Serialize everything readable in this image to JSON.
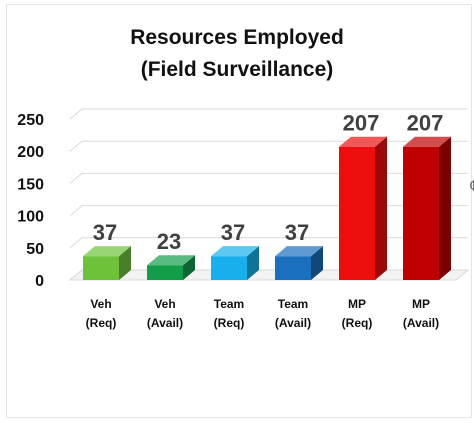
{
  "chart_data": {
    "type": "bar",
    "title": [
      "Resources Employed",
      "(Field Surveillance)"
    ],
    "categories": [
      [
        "Veh",
        "(Req)"
      ],
      [
        "Veh",
        "(Avail)"
      ],
      [
        "Team",
        "(Req)"
      ],
      [
        "Team",
        "(Avail)"
      ],
      [
        "MP",
        "(Req)"
      ],
      [
        "MP",
        "(Avail)"
      ]
    ],
    "values": [
      37,
      23,
      37,
      37,
      207,
      207
    ],
    "data_labels": [
      "37",
      "23",
      "37",
      "37",
      "207",
      "207"
    ],
    "colors": [
      "#6dc23a",
      "#129d48",
      "#17b0ec",
      "#1a6fbf",
      "#ee0d0d",
      "#c00000"
    ],
    "yticks": [
      "0",
      "50",
      "100",
      "150",
      "200",
      "250"
    ],
    "ylim": [
      0,
      250
    ],
    "three_d": true,
    "gridlines": true,
    "legend": "none",
    "clipped_right_glyph": "¢"
  }
}
